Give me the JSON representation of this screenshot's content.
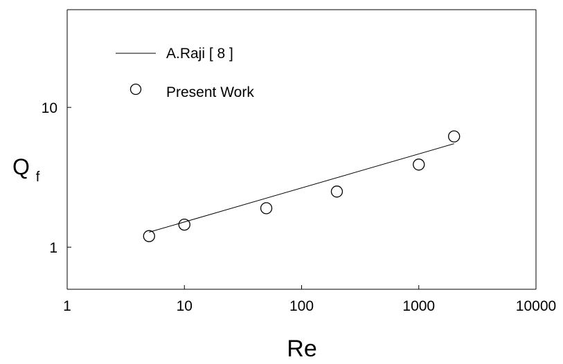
{
  "chart_data": {
    "type": "scatter",
    "xscale": "log",
    "yscale": "log",
    "xlim": [
      1,
      10000
    ],
    "ylim": [
      0.5,
      50
    ],
    "xticks": [
      1,
      10,
      100,
      1000,
      10000
    ],
    "xtick_labels": [
      "1",
      "10",
      "100",
      "1000",
      "10000"
    ],
    "yticks": [
      1,
      10
    ],
    "ytick_labels": [
      "1",
      "10"
    ],
    "xlabel": "Re",
    "ylabel_main": "Q",
    "ylabel_sub": "f",
    "grid": false,
    "legend_position": "top-left",
    "series": [
      {
        "name": "A.Raji [ 8 ]",
        "kind": "line",
        "x": [
          5,
          2000
        ],
        "y": [
          1.28,
          5.5
        ]
      },
      {
        "name": "Present Work",
        "kind": "markers",
        "marker": "open-circle",
        "x": [
          5,
          10,
          50,
          200,
          1000,
          2000
        ],
        "y": [
          1.2,
          1.45,
          1.9,
          2.5,
          3.9,
          6.2
        ]
      }
    ],
    "colors": {
      "line": "#000000",
      "marker": "#000000"
    }
  }
}
